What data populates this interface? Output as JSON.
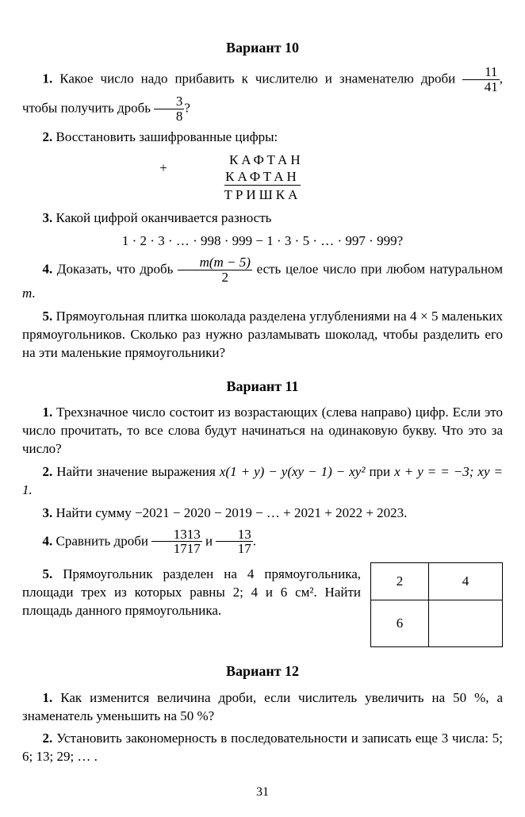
{
  "variants": {
    "v10": {
      "title": "Вариант 10",
      "q1_a": "1.",
      "q1_b": " Какое число надо прибавить к числителю и знаменателю дроби ",
      "q1_frac1_num": "11",
      "q1_frac1_den": "41",
      "q1_c": ", чтобы получить дробь ",
      "q1_frac2_num": "3",
      "q1_frac2_den": "8",
      "q1_d": "?",
      "q2_a": "2.",
      "q2_b": " Восстановить зашифрованные цифры:",
      "crypt_plus": "+",
      "crypt_l1": "КАФТАН",
      "crypt_l2": "КАФТАН",
      "crypt_l3": "ТРИШКА",
      "q3_a": "3.",
      "q3_b": " Какой цифрой оканчивается разность",
      "q3_expr": "1 · 2 · 3 · … · 998 · 999 − 1 · 3 · 5 · … · 997 · 999?",
      "q4_a": "4.",
      "q4_b": " Доказать, что дробь ",
      "q4_frac_num": "m(m − 5)",
      "q4_frac_den": "2",
      "q4_c": " есть целое число при любом натуральном ",
      "q4_d": "m",
      "q4_e": ".",
      "q5_a": "5.",
      "q5_b": " Прямоугольная плитка шоколада разделена углублениями на 4 × 5 маленьких прямоугольников. Сколько раз нужно разламывать шоколад, чтобы разделить его на эти маленькие прямоугольники?"
    },
    "v11": {
      "title": "Вариант 11",
      "q1_a": "1.",
      "q1_b": " Трехзначное число состоит из возрастающих (слева направо) цифр. Если это число прочитать, то все слова будут начинаться на одинаковую букву. Что это за число?",
      "q2_a": "2.",
      "q2_b": " Найти значение выражения ",
      "q2_expr": "x(1 + y) − y(xy − 1) − xy²",
      "q2_c": " при ",
      "q2_d": "x + y = = −3; xy = 1.",
      "q3_a": "3.",
      "q3_b": " Найти сумму −2021 − 2020 − 2019 − … + 2021 + 2022 + 2023.",
      "q4_a": "4.",
      "q4_b": " Сравнить дроби ",
      "q4_frac1_num": "1313",
      "q4_frac1_den": "1717",
      "q4_mid": " и ",
      "q4_frac2_num": "13",
      "q4_frac2_den": "17",
      "q4_c": ".",
      "q5_a": "5.",
      "q5_b": " Прямоугольник разделен на 4 прямоугольника, площади трех из которых равны 2; 4 и 6 см². Найти площадь данного прямоугольника.",
      "rects": {
        "c1": "2",
        "c2": "4",
        "c3": "6",
        "w1": 70,
        "w2": 90,
        "h1": 44,
        "h2": 56
      }
    },
    "v12": {
      "title": "Вариант 12",
      "q1_a": "1.",
      "q1_b": " Как изменится величина дроби, если числитель увеличить на 50 %, а знаменатель уменьшить на 50 %?",
      "q2_a": "2.",
      "q2_b": " Установить закономерность в последовательности и записать еще 3 числа: 5; 6; 13; 29; … ."
    }
  },
  "page_number": "31"
}
